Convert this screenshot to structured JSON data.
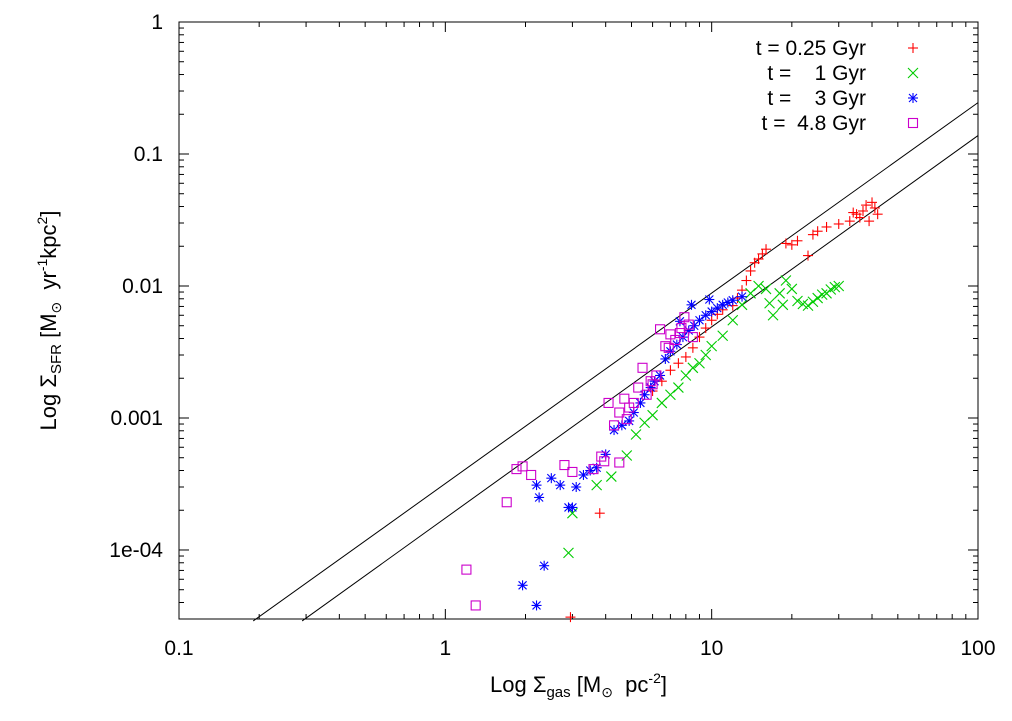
{
  "chart_data": {
    "type": "scatter",
    "title": "",
    "x_scale": "log",
    "y_scale": "log",
    "xlim": [
      0.1,
      100
    ],
    "ylim": [
      3e-05,
      1
    ],
    "x_ticks": [
      {
        "value": 0.1,
        "label": "0.1"
      },
      {
        "value": 1,
        "label": "1"
      },
      {
        "value": 10,
        "label": "10"
      },
      {
        "value": 100,
        "label": "100"
      }
    ],
    "y_ticks": [
      {
        "value": 0.0001,
        "label": "1e-04"
      },
      {
        "value": 0.001,
        "label": "0.001"
      },
      {
        "value": 0.01,
        "label": "0.01"
      },
      {
        "value": 0.1,
        "label": "0.1"
      },
      {
        "value": 1,
        "label": "1"
      }
    ],
    "xlabel": {
      "prefix": "Log ",
      "symbol": "Σ",
      "sub": "gas",
      "unit_open": " [M",
      "sun_sub": "⊙",
      "unit_mid": "  pc",
      "sup": "-2",
      "unit_close": "]"
    },
    "ylabel": {
      "prefix": "Log ",
      "symbol": "Σ",
      "sub": "SFR",
      "unit_open": " [M",
      "sun_sub": "⊙",
      "unit_mid": "  yr",
      "sup1": "-1",
      "unit_mid2": "kpc",
      "sup2": "2",
      "unit_close": "]"
    },
    "reference_lines": [
      {
        "name": "upper-reference-line",
        "points": [
          [
            0.19,
            2.9e-05
          ],
          [
            100,
            0.245
          ]
        ]
      },
      {
        "name": "lower-reference-line",
        "points": [
          [
            0.29,
            2.9e-05
          ],
          [
            100,
            0.138
          ]
        ]
      }
    ],
    "series": [
      {
        "name": "t = 0.25 Gyr",
        "color": "#ff0000",
        "marker": "plus",
        "points": [
          [
            2.95,
            3.1e-05
          ],
          [
            3.8,
            0.00019
          ],
          [
            6.0,
            0.0016
          ],
          [
            6.5,
            0.0019
          ],
          [
            7.0,
            0.0023
          ],
          [
            7.5,
            0.0026
          ],
          [
            8.0,
            0.0029
          ],
          [
            8.5,
            0.0034
          ],
          [
            9.0,
            0.0041
          ],
          [
            9.5,
            0.0048
          ],
          [
            10.0,
            0.0055
          ],
          [
            10.5,
            0.0061
          ],
          [
            11.0,
            0.0066
          ],
          [
            12.0,
            0.0071
          ],
          [
            12.5,
            0.0081
          ],
          [
            13.0,
            0.0093
          ],
          [
            13.5,
            0.011
          ],
          [
            14.0,
            0.013
          ],
          [
            14.5,
            0.015
          ],
          [
            15.0,
            0.016
          ],
          [
            15.5,
            0.0175
          ],
          [
            16.0,
            0.019
          ],
          [
            19.0,
            0.021
          ],
          [
            20.0,
            0.0205
          ],
          [
            21.0,
            0.022
          ],
          [
            23.0,
            0.017
          ],
          [
            24.0,
            0.0245
          ],
          [
            25.0,
            0.026
          ],
          [
            27.0,
            0.028
          ],
          [
            30.0,
            0.0295
          ],
          [
            33.0,
            0.031
          ],
          [
            35.0,
            0.035
          ],
          [
            37.0,
            0.037
          ],
          [
            38.0,
            0.041
          ],
          [
            40.0,
            0.043
          ],
          [
            41.0,
            0.039
          ],
          [
            42.0,
            0.035
          ],
          [
            36.0,
            0.033
          ],
          [
            39.0,
            0.031
          ],
          [
            34.0,
            0.036
          ]
        ]
      },
      {
        "name": "t =    1 Gyr",
        "color": "#00cc00",
        "marker": "cross",
        "points": [
          [
            2.9,
            9.5e-05
          ],
          [
            3.0,
            0.00019
          ],
          [
            3.7,
            0.00031
          ],
          [
            4.2,
            0.00036
          ],
          [
            4.8,
            0.00052
          ],
          [
            5.2,
            0.00075
          ],
          [
            5.6,
            0.00092
          ],
          [
            6.0,
            0.00105
          ],
          [
            6.5,
            0.0013
          ],
          [
            7.0,
            0.0015
          ],
          [
            7.5,
            0.0017
          ],
          [
            8.0,
            0.0021
          ],
          [
            8.5,
            0.0024
          ],
          [
            9.0,
            0.0026
          ],
          [
            9.5,
            0.003
          ],
          [
            10.0,
            0.0035
          ],
          [
            11.0,
            0.0042
          ],
          [
            12.0,
            0.0055
          ],
          [
            13.0,
            0.0072
          ],
          [
            14.0,
            0.0088
          ],
          [
            15.0,
            0.01
          ],
          [
            16.0,
            0.0095
          ],
          [
            17.0,
            0.006
          ],
          [
            18.0,
            0.0088
          ],
          [
            19.0,
            0.011
          ],
          [
            20.0,
            0.0095
          ],
          [
            21.0,
            0.0077
          ],
          [
            22.0,
            0.0073
          ],
          [
            23.0,
            0.0071
          ],
          [
            24.0,
            0.0076
          ],
          [
            25.0,
            0.0081
          ],
          [
            26.0,
            0.0086
          ],
          [
            27.0,
            0.0088
          ],
          [
            28.0,
            0.0094
          ],
          [
            29.0,
            0.0098
          ],
          [
            30.0,
            0.01
          ],
          [
            18.5,
            0.0072
          ],
          [
            16.5,
            0.0074
          ]
        ]
      },
      {
        "name": "t =    3 Gyr",
        "color": "#0000ff",
        "marker": "star",
        "points": [
          [
            1.95,
            5.4e-05
          ],
          [
            2.2,
            3.8e-05
          ],
          [
            2.35,
            7.6e-05
          ],
          [
            2.25,
            0.00025
          ],
          [
            2.2,
            0.00031
          ],
          [
            2.5,
            0.00035
          ],
          [
            2.7,
            0.00031
          ],
          [
            2.9,
            0.00021
          ],
          [
            3.0,
            0.00021
          ],
          [
            3.1,
            0.0003
          ],
          [
            3.3,
            0.00037
          ],
          [
            3.5,
            0.0004
          ],
          [
            3.7,
            0.00042
          ],
          [
            4.0,
            0.00053
          ],
          [
            4.3,
            0.00081
          ],
          [
            4.6,
            0.00088
          ],
          [
            4.9,
            0.00095
          ],
          [
            5.1,
            0.0011
          ],
          [
            5.4,
            0.0013
          ],
          [
            5.6,
            0.0015
          ],
          [
            5.9,
            0.0017
          ],
          [
            6.1,
            0.0019
          ],
          [
            6.4,
            0.0021
          ],
          [
            6.7,
            0.0028
          ],
          [
            7.0,
            0.0032
          ],
          [
            7.4,
            0.0036
          ],
          [
            7.8,
            0.0041
          ],
          [
            8.2,
            0.0046
          ],
          [
            8.6,
            0.005
          ],
          [
            9.0,
            0.0055
          ],
          [
            9.5,
            0.006
          ],
          [
            10.0,
            0.0064
          ],
          [
            10.5,
            0.0068
          ],
          [
            11.0,
            0.0072
          ],
          [
            11.5,
            0.0075
          ],
          [
            12.0,
            0.0078
          ],
          [
            13.0,
            0.0083
          ],
          [
            9.8,
            0.0079
          ],
          [
            8.4,
            0.0072
          ],
          [
            7.6,
            0.0054
          ]
        ]
      },
      {
        "name": "t =  4.8 Gyr",
        "color": "#cc00cc",
        "marker": "square",
        "points": [
          [
            1.2,
            7.1e-05
          ],
          [
            1.3,
            3.8e-05
          ],
          [
            1.7,
            0.00023
          ],
          [
            1.85,
            0.00041
          ],
          [
            1.95,
            0.00043
          ],
          [
            2.1,
            0.00037
          ],
          [
            2.8,
            0.00044
          ],
          [
            3.0,
            0.00039
          ],
          [
            3.6,
            0.00041
          ],
          [
            3.85,
            0.00051
          ],
          [
            3.95,
            0.00047
          ],
          [
            4.1,
            0.0013
          ],
          [
            4.3,
            0.00088
          ],
          [
            4.5,
            0.0011
          ],
          [
            4.7,
            0.0014
          ],
          [
            4.9,
            0.0012
          ],
          [
            5.1,
            0.0013
          ],
          [
            5.3,
            0.0017
          ],
          [
            5.5,
            0.0024
          ],
          [
            5.7,
            0.0015
          ],
          [
            5.9,
            0.0019
          ],
          [
            6.2,
            0.0021
          ],
          [
            6.4,
            0.0047
          ],
          [
            6.7,
            0.0035
          ],
          [
            7.0,
            0.0043
          ],
          [
            7.3,
            0.0039
          ],
          [
            7.6,
            0.0044
          ],
          [
            7.9,
            0.0058
          ],
          [
            8.2,
            0.0051
          ],
          [
            8.5,
            0.0041
          ],
          [
            4.5,
            0.00046
          ],
          [
            6.9,
            0.0034
          ],
          [
            7.7,
            0.0048
          ],
          [
            6.0,
            0.0018
          ],
          [
            4.8,
            0.00098
          ]
        ]
      }
    ],
    "legend": {
      "position": "top-right"
    }
  }
}
